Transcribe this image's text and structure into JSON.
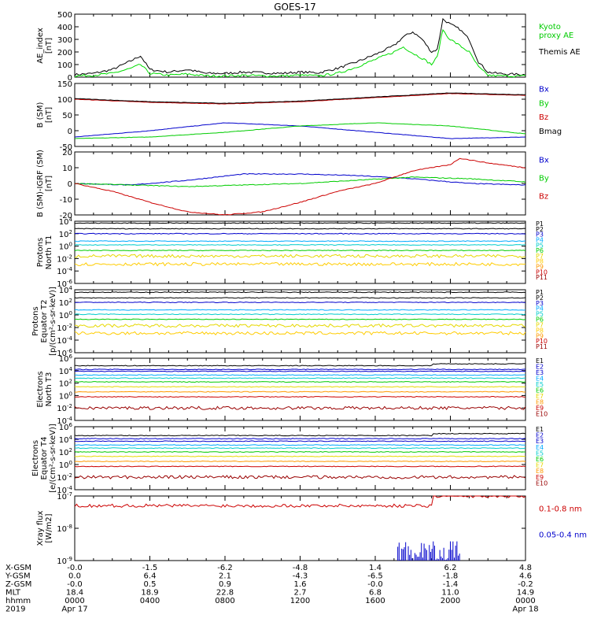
{
  "title": "GOES-17",
  "colors": {
    "black": "#000000",
    "green": "#00dd00",
    "blue": "#0000cc",
    "red": "#cc0000",
    "darkred": "#990000",
    "cyan": "#00cccc",
    "yellow": "#e6d800",
    "orange": "#ff9900"
  },
  "chart_data": [
    {
      "type": "line",
      "ylabel": "AE_index\n[nT]",
      "ylim": [
        0,
        500
      ],
      "ticks": [
        "0",
        "100",
        "200",
        "300",
        "400",
        "500"
      ],
      "legend": [
        {
          "text": "Kyoto\nproxy AE",
          "color": "#00cc00"
        },
        {
          "text": "Themis AE",
          "color": "#000000"
        }
      ],
      "series": [
        {
          "name": "Themis AE",
          "color": "#000000",
          "x": [
            0,
            1,
            2,
            3,
            3.5,
            4,
            5,
            6,
            7,
            8,
            9,
            10,
            11,
            12,
            13,
            14,
            15,
            16,
            17,
            17.5,
            18,
            18.5,
            19,
            19.3,
            19.6,
            19.8,
            20,
            20.5,
            21,
            21.5,
            22,
            22.5,
            23,
            24
          ],
          "y": [
            20,
            30,
            60,
            130,
            170,
            60,
            40,
            60,
            30,
            30,
            40,
            35,
            30,
            40,
            35,
            70,
            120,
            180,
            250,
            320,
            360,
            300,
            200,
            220,
            460,
            440,
            420,
            380,
            300,
            120,
            40,
            30,
            25,
            20
          ]
        },
        {
          "name": "Kyoto proxy AE",
          "color": "#00dd00",
          "x": [
            0,
            1,
            2,
            3,
            3.5,
            4,
            5,
            6,
            7,
            8,
            9,
            10,
            11,
            12,
            13,
            14,
            15,
            16,
            17,
            17.5,
            18,
            18.5,
            19,
            19.3,
            19.6,
            19.8,
            20,
            20.5,
            21,
            21.5,
            22,
            22.5,
            23,
            24
          ],
          "y": [
            10,
            15,
            30,
            70,
            100,
            30,
            15,
            25,
            10,
            10,
            15,
            10,
            10,
            15,
            10,
            30,
            80,
            140,
            200,
            240,
            190,
            150,
            100,
            160,
            380,
            330,
            300,
            250,
            200,
            80,
            15,
            10,
            10,
            8
          ]
        }
      ]
    },
    {
      "type": "line",
      "ylabel": "B (SM)\n[nT]",
      "ylim": [
        -50,
        150
      ],
      "ticks": [
        "-50",
        "0",
        "50",
        "100",
        "150"
      ],
      "legend": [
        {
          "text": "Bx",
          "color": "#0000cc"
        },
        {
          "text": "By",
          "color": "#00cc00"
        },
        {
          "text": "Bz",
          "color": "#cc0000"
        },
        {
          "text": "Bmag",
          "color": "#000000"
        }
      ],
      "series": [
        {
          "name": "Bx",
          "color": "#0000cc",
          "x": [
            0,
            4,
            8,
            12,
            16,
            20,
            24
          ],
          "y": [
            -20,
            0,
            25,
            15,
            -5,
            -25,
            -20
          ]
        },
        {
          "name": "By",
          "color": "#00cc00",
          "x": [
            0,
            4,
            8,
            12,
            16,
            20,
            24
          ],
          "y": [
            -25,
            -20,
            -5,
            15,
            25,
            15,
            -10
          ]
        },
        {
          "name": "Bz",
          "color": "#cc0000",
          "x": [
            0,
            4,
            8,
            12,
            16,
            20,
            24
          ],
          "y": [
            100,
            90,
            85,
            92,
            105,
            118,
            112
          ]
        },
        {
          "name": "Bmag",
          "color": "#000000",
          "x": [
            0,
            4,
            8,
            12,
            16,
            20,
            24
          ],
          "y": [
            102,
            92,
            87,
            94,
            107,
            120,
            114
          ]
        }
      ]
    },
    {
      "type": "line",
      "ylabel": "B (SM)-IGRF (SM)\n[nT]",
      "ylim": [
        -20,
        20
      ],
      "ticks": [
        "-20",
        "-10",
        "0",
        "10",
        "20"
      ],
      "legend": [
        {
          "text": "Bx",
          "color": "#0000cc"
        },
        {
          "text": "By",
          "color": "#00cc00"
        },
        {
          "text": "Bz",
          "color": "#cc0000"
        }
      ],
      "series": [
        {
          "name": "Bx",
          "color": "#0000cc",
          "x": [
            0,
            3,
            6,
            9,
            12,
            15,
            18,
            21,
            24
          ],
          "y": [
            0,
            -1,
            2,
            6,
            6,
            5,
            3,
            0,
            -1
          ]
        },
        {
          "name": "By",
          "color": "#00cc00",
          "x": [
            0,
            3,
            6,
            9,
            12,
            15,
            18,
            21,
            24
          ],
          "y": [
            0,
            -1,
            -2,
            -1,
            0,
            2,
            4,
            3,
            1
          ]
        },
        {
          "name": "Bz",
          "color": "#cc0000",
          "x": [
            0,
            2,
            4,
            6,
            8,
            10,
            12,
            14,
            16,
            18,
            20,
            20.5,
            22,
            24
          ],
          "y": [
            0,
            -5,
            -12,
            -18,
            -20,
            -18,
            -12,
            -5,
            0,
            8,
            12,
            16,
            13,
            10
          ]
        }
      ]
    },
    {
      "type": "line",
      "log": true,
      "ylabel": "Protons\nNorth T1",
      "ylim": [
        -6,
        4
      ],
      "ticks": [
        "10^4",
        "10^2",
        "10^0",
        "10^-2",
        "10^-4",
        "10^-6"
      ],
      "legend": [
        {
          "text": "P1",
          "color": "#000000"
        },
        {
          "text": "P2",
          "color": "#000000"
        },
        {
          "text": "P3",
          "color": "#0000cc"
        },
        {
          "text": "P4",
          "color": "#00aaff"
        },
        {
          "text": "P5",
          "color": "#00cccc"
        },
        {
          "text": "P6",
          "color": "#00cc00"
        },
        {
          "text": "P7",
          "color": "#e6d800"
        },
        {
          "text": "P8",
          "color": "#ffcc00"
        },
        {
          "text": "P9",
          "color": "#ff9900"
        },
        {
          "text": "P10",
          "color": "#cc0000"
        },
        {
          "text": "P11",
          "color": "#990000"
        }
      ],
      "series": [
        {
          "name": "P1",
          "color": "#000000",
          "level": 3.7
        },
        {
          "name": "P2",
          "color": "#000000",
          "level": 2.8
        },
        {
          "name": "P3",
          "color": "#0000cc",
          "level": 2.0
        },
        {
          "name": "P4",
          "color": "#00aaff",
          "level": 0.8
        },
        {
          "name": "P5",
          "color": "#00cccc",
          "level": 0.2
        },
        {
          "name": "P6",
          "color": "#00cc00",
          "level": -0.7
        },
        {
          "name": "P7",
          "color": "#e6d800",
          "level": -1.6
        },
        {
          "name": "P8",
          "color": "#ffcc00",
          "level": -2.9
        }
      ]
    },
    {
      "type": "line",
      "log": true,
      "ylabel": "Protons\nEquator T2\n[p/(cm²-s-sr-keV)]",
      "ylim": [
        -6,
        4
      ],
      "ticks": [
        "10^4",
        "10^2",
        "10^0",
        "10^-2",
        "10^-4",
        "10^-6"
      ],
      "legend": [
        {
          "text": "P1",
          "color": "#000000"
        },
        {
          "text": "P2",
          "color": "#000000"
        },
        {
          "text": "P3",
          "color": "#0000cc"
        },
        {
          "text": "P4",
          "color": "#00aaff"
        },
        {
          "text": "P5",
          "color": "#00cccc"
        },
        {
          "text": "P6",
          "color": "#00cc00"
        },
        {
          "text": "P7",
          "color": "#e6d800"
        },
        {
          "text": "P8",
          "color": "#ffcc00"
        },
        {
          "text": "P9",
          "color": "#ff9900"
        },
        {
          "text": "P10",
          "color": "#cc0000"
        },
        {
          "text": "P11",
          "color": "#990000"
        }
      ],
      "series": [
        {
          "name": "P1",
          "color": "#000000",
          "level": 3.6
        },
        {
          "name": "P2",
          "color": "#000000",
          "level": 2.7
        },
        {
          "name": "P3",
          "color": "#0000cc",
          "level": 2.0
        },
        {
          "name": "P4",
          "color": "#00aaff",
          "level": 0.8
        },
        {
          "name": "P5",
          "color": "#00cccc",
          "level": 0.1
        },
        {
          "name": "P6",
          "color": "#00cc00",
          "level": -0.7
        },
        {
          "name": "P7",
          "color": "#e6d800",
          "level": -1.7
        },
        {
          "name": "P8",
          "color": "#ffcc00",
          "level": -2.9
        }
      ]
    },
    {
      "type": "line",
      "log": true,
      "ylabel": "Electrons\nNorth T3",
      "ylim": [
        -4,
        6
      ],
      "ticks": [
        "10^6",
        "10^4",
        "10^2",
        "10^0",
        "10^-2",
        "10^-4"
      ],
      "legend": [
        {
          "text": "E1",
          "color": "#000000"
        },
        {
          "text": "E2",
          "color": "#0000cc"
        },
        {
          "text": "E3",
          "color": "#0000cc"
        },
        {
          "text": "E4",
          "color": "#00aaff"
        },
        {
          "text": "E5",
          "color": "#00cccc"
        },
        {
          "text": "E6",
          "color": "#00cc00"
        },
        {
          "text": "E7",
          "color": "#e6d800"
        },
        {
          "text": "E8",
          "color": "#ff9900"
        },
        {
          "text": "E9",
          "color": "#cc0000"
        },
        {
          "text": "E10",
          "color": "#990000"
        }
      ],
      "series": [
        {
          "name": "E1",
          "color": "#000000",
          "level": 4.8
        },
        {
          "name": "E2",
          "color": "#0000cc",
          "level": 4.2
        },
        {
          "name": "E3",
          "color": "#0000cc",
          "level": 3.9
        },
        {
          "name": "E4",
          "color": "#00aaff",
          "level": 3.3
        },
        {
          "name": "E5",
          "color": "#00cccc",
          "level": 2.8
        },
        {
          "name": "E6",
          "color": "#00cc00",
          "level": 2.2
        },
        {
          "name": "E7",
          "color": "#e6d800",
          "level": 1.4
        },
        {
          "name": "E8",
          "color": "#ff9900",
          "level": 0.6
        },
        {
          "name": "E9",
          "color": "#cc0000",
          "level": -0.2
        },
        {
          "name": "E10",
          "color": "#990000",
          "level": -2.0
        }
      ]
    },
    {
      "type": "line",
      "log": true,
      "ylabel": "Electrons\nEquator T4\n[e/(cm²-s-sr-keV)]",
      "ylim": [
        -4,
        6
      ],
      "ticks": [
        "10^6",
        "10^4",
        "10^2",
        "10^0",
        "10^-2",
        "10^-4"
      ],
      "legend": [
        {
          "text": "E1",
          "color": "#000000"
        },
        {
          "text": "E2",
          "color": "#0000cc"
        },
        {
          "text": "E3",
          "color": "#0000cc"
        },
        {
          "text": "E4",
          "color": "#00aaff"
        },
        {
          "text": "E5",
          "color": "#00cccc"
        },
        {
          "text": "E6",
          "color": "#00cc00"
        },
        {
          "text": "E7",
          "color": "#e6d800"
        },
        {
          "text": "E8",
          "color": "#ff9900"
        },
        {
          "text": "E9",
          "color": "#cc0000"
        },
        {
          "text": "E10",
          "color": "#990000"
        }
      ],
      "series": [
        {
          "name": "E1",
          "color": "#000000",
          "level": 4.6
        },
        {
          "name": "E2",
          "color": "#0000cc",
          "level": 4.1
        },
        {
          "name": "E3",
          "color": "#0000cc",
          "level": 3.7
        },
        {
          "name": "E4",
          "color": "#00aaff",
          "level": 3.1
        },
        {
          "name": "E5",
          "color": "#00cccc",
          "level": 2.6
        },
        {
          "name": "E6",
          "color": "#00cc00",
          "level": 2.0
        },
        {
          "name": "E7",
          "color": "#e6d800",
          "level": 1.3
        },
        {
          "name": "E8",
          "color": "#ff9900",
          "level": 0.5
        },
        {
          "name": "E9",
          "color": "#cc0000",
          "level": -0.3
        },
        {
          "name": "E10",
          "color": "#990000",
          "level": -2.0
        }
      ]
    },
    {
      "type": "line",
      "log": true,
      "ylabel": "Xray flux\n[W/m2]",
      "ylim": [
        -9,
        -7
      ],
      "ticks": [
        "10^-7",
        "10^-8",
        "10^-9"
      ],
      "legend": [
        {
          "text": "0.1-0.8 nm",
          "color": "#cc0000"
        },
        {
          "text": "0.05-0.4 nm",
          "color": "#0000cc"
        }
      ],
      "series": [
        {
          "name": "0.1-0.8 nm",
          "color": "#cc0000",
          "level": -7.3
        },
        {
          "name": "0.05-0.4 nm",
          "color": "#0000cc",
          "spikes": [
            17.2,
            20.5
          ]
        }
      ]
    }
  ],
  "orbit_rows": [
    {
      "label": "X-GSM",
      "values": [
        "-0.0",
        "-1.5",
        "-6.2",
        "-4.8",
        "1.4",
        "6.2",
        "4.8"
      ]
    },
    {
      "label": "Y-GSM",
      "values": [
        "0.0",
        "6.4",
        "2.1",
        "-4.3",
        "-6.5",
        "-1.8",
        "4.6"
      ]
    },
    {
      "label": "Z-GSM",
      "values": [
        "-0.0",
        "0.5",
        "0.9",
        "1.6",
        "-0.0",
        "-1.4",
        "-0.2"
      ]
    },
    {
      "label": "MLT",
      "values": [
        "18.4",
        "18.9",
        "22.8",
        "2.7",
        "6.8",
        "11.0",
        "14.9"
      ]
    },
    {
      "label": "hhmm",
      "values": [
        "0000",
        "0400",
        "0800",
        "1200",
        "1600",
        "2000",
        "0000"
      ]
    },
    {
      "label": "2019",
      "values": [
        "Apr 17",
        "",
        "",
        "",
        "",
        "",
        "Apr 18"
      ]
    }
  ]
}
